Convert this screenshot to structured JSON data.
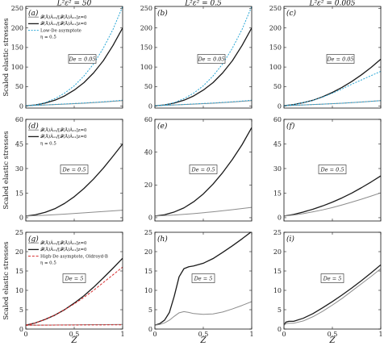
{
  "figure": {
    "column_titles": [
      "L²ε² = 50",
      "L²ε² = 0.5",
      "L²ε² = 0.005"
    ],
    "row_ylabels": [
      "Scaled elastic stresses",
      "Scaled elastic stresses",
      "Scaled elastic stresses"
    ],
    "xlabel": "Z",
    "legends": {
      "row0": [
        "𝓕(Ā)Â₁₂/[𝓕(Ā)Â₁₂]z=0",
        "𝓕(Ā)Â₁₁/[𝓕(Ā)Â₁₁]z=0",
        "Low-De asymptote",
        "η = 0.5"
      ],
      "row1": [
        "𝓕(Ā)Â₁₂/[𝓕(Ā)Â₁₂]z=0",
        "𝓕(Ā)Â₁₁/[𝓕(Ā)Â₁₁]z=0",
        "η = 0.5"
      ],
      "row2": [
        "𝓕(Ā)Â₁₂/[𝓕(Ā)Â₁₂]z=0",
        "𝓕(Ā)Â₁₁/[𝓕(Ā)Â₁₁]z=0",
        "High-De asymptote, Oldroyd-B",
        "η = 0.5"
      ]
    },
    "colors": {
      "a11": "#1a1a1a",
      "a12": "#8c8c8c",
      "low_de": "#2aa7d6",
      "high_de": "#d62728"
    }
  },
  "chart_data": [
    {
      "panel": "(a)",
      "type": "line",
      "de_label": "De = 0.05",
      "xlim": [
        0,
        1
      ],
      "ylim": [
        -5,
        255
      ],
      "yticks": [
        0,
        50,
        100,
        150,
        200,
        250
      ],
      "xticks": [
        0,
        0.5,
        1
      ],
      "xtick_labels": [
        "",
        "",
        ""
      ],
      "series": [
        {
          "role": "a11",
          "x": [
            0,
            0.1,
            0.2,
            0.3,
            0.4,
            0.5,
            0.6,
            0.7,
            0.8,
            0.9,
            1
          ],
          "y": [
            1,
            3,
            8,
            15,
            26,
            41,
            60,
            85,
            116,
            155,
            200
          ]
        },
        {
          "role": "a12",
          "x": [
            0,
            0.2,
            0.4,
            0.6,
            0.8,
            1
          ],
          "y": [
            1,
            3,
            5,
            7.5,
            10.5,
            14
          ]
        },
        {
          "role": "low_de",
          "x": [
            0,
            0.1,
            0.2,
            0.3,
            0.4,
            0.5,
            0.6,
            0.7,
            0.8,
            0.9,
            1
          ],
          "y": [
            1,
            3,
            9,
            19,
            33,
            52,
            77,
            108,
            148,
            196,
            255
          ]
        },
        {
          "role": "low_de",
          "x": [
            0,
            0.2,
            0.4,
            0.6,
            0.8,
            1
          ],
          "y": [
            1,
            3,
            5.5,
            8,
            11,
            15
          ]
        }
      ]
    },
    {
      "panel": "(b)",
      "type": "line",
      "de_label": "De = 0.05",
      "xlim": [
        0,
        1
      ],
      "ylim": [
        -5,
        255
      ],
      "yticks": [
        0,
        50,
        100,
        150,
        200,
        250
      ],
      "xticks": [
        0,
        0.5,
        1
      ],
      "xtick_labels": [
        "",
        "",
        ""
      ],
      "series": [
        {
          "role": "a11",
          "x": [
            0,
            0.1,
            0.2,
            0.3,
            0.4,
            0.5,
            0.6,
            0.7,
            0.8,
            0.9,
            1
          ],
          "y": [
            1,
            3,
            8,
            15,
            26,
            41,
            60,
            85,
            116,
            155,
            200
          ]
        },
        {
          "role": "a12",
          "x": [
            0,
            0.2,
            0.4,
            0.6,
            0.8,
            1
          ],
          "y": [
            1,
            3,
            5,
            7.5,
            10.5,
            14
          ]
        },
        {
          "role": "low_de",
          "x": [
            0,
            0.1,
            0.2,
            0.3,
            0.4,
            0.5,
            0.6,
            0.7,
            0.8,
            0.9,
            1
          ],
          "y": [
            1,
            3,
            9,
            19,
            33,
            52,
            77,
            108,
            148,
            196,
            255
          ]
        },
        {
          "role": "low_de",
          "x": [
            0,
            0.2,
            0.4,
            0.6,
            0.8,
            1
          ],
          "y": [
            1,
            3,
            5.5,
            8,
            11,
            15
          ]
        }
      ]
    },
    {
      "panel": "(c)",
      "type": "line",
      "de_label": "De = 0.05",
      "xlim": [
        0,
        1
      ],
      "ylim": [
        -5,
        255
      ],
      "yticks": [
        0,
        50,
        100,
        150,
        200,
        250
      ],
      "xticks": [
        0,
        0.5,
        1
      ],
      "xtick_labels": [
        "",
        "",
        ""
      ],
      "series": [
        {
          "role": "a11",
          "x": [
            0,
            0.1,
            0.2,
            0.3,
            0.4,
            0.5,
            0.6,
            0.7,
            0.8,
            0.9,
            1
          ],
          "y": [
            1,
            4,
            9,
            15,
            24,
            35,
            48,
            63,
            80,
            99,
            120
          ]
        },
        {
          "role": "a12",
          "x": [
            0,
            0.2,
            0.4,
            0.6,
            0.8,
            1
          ],
          "y": [
            1,
            3,
            5,
            7.5,
            10.5,
            14
          ]
        },
        {
          "role": "low_de",
          "x": [
            0,
            0.1,
            0.2,
            0.3,
            0.4,
            0.5,
            0.6,
            0.7,
            0.8,
            0.9,
            1
          ],
          "y": [
            1,
            4,
            9,
            15,
            23,
            33,
            44,
            56,
            67,
            78,
            89
          ]
        },
        {
          "role": "low_de",
          "x": [
            0,
            0.2,
            0.4,
            0.6,
            0.8,
            1
          ],
          "y": [
            1,
            3,
            5,
            7.5,
            10.5,
            14
          ]
        }
      ]
    },
    {
      "panel": "(d)",
      "type": "line",
      "de_label": "De = 0.5",
      "xlim": [
        0,
        1
      ],
      "ylim": [
        -2,
        60
      ],
      "yticks": [
        0,
        15,
        30,
        45,
        60
      ],
      "xticks": [
        0,
        0.5,
        1
      ],
      "xtick_labels": [
        "",
        "",
        ""
      ],
      "series": [
        {
          "role": "a11",
          "x": [
            0,
            0.1,
            0.2,
            0.3,
            0.4,
            0.5,
            0.6,
            0.7,
            0.8,
            0.9,
            1
          ],
          "y": [
            1,
            1.8,
            3.3,
            5.5,
            8.7,
            12.8,
            17.8,
            23.6,
            30.2,
            37.5,
            45
          ]
        },
        {
          "role": "a12",
          "x": [
            0,
            0.2,
            0.4,
            0.6,
            0.8,
            1
          ],
          "y": [
            1,
            1.5,
            2.2,
            3,
            3.8,
            4.6
          ]
        }
      ]
    },
    {
      "panel": "(e)",
      "type": "line",
      "de_label": "De = 0.5",
      "xlim": [
        0,
        1
      ],
      "ylim": [
        -2,
        60
      ],
      "yticks": [
        0,
        20,
        40,
        60
      ],
      "xticks": [
        0,
        0.5,
        1
      ],
      "xtick_labels": [
        "",
        "",
        ""
      ],
      "series": [
        {
          "role": "a11",
          "x": [
            0,
            0.1,
            0.2,
            0.3,
            0.4,
            0.5,
            0.6,
            0.7,
            0.8,
            0.9,
            1
          ],
          "y": [
            1,
            1.8,
            3.5,
            6,
            9.7,
            14.5,
            20.5,
            27.5,
            35.5,
            44.5,
            55
          ]
        },
        {
          "role": "a12",
          "x": [
            0,
            0.2,
            0.4,
            0.6,
            0.8,
            1
          ],
          "y": [
            1,
            1.6,
            2.5,
            3.6,
            4.9,
            6.3
          ]
        }
      ]
    },
    {
      "panel": "(f)",
      "type": "line",
      "de_label": "De = 0.5",
      "xlim": [
        0,
        1
      ],
      "ylim": [
        -2,
        60
      ],
      "yticks": [
        0,
        15,
        30,
        45,
        60
      ],
      "xticks": [
        0,
        0.5,
        1
      ],
      "xtick_labels": [
        "",
        "",
        ""
      ],
      "series": [
        {
          "role": "a11",
          "x": [
            0,
            0.1,
            0.2,
            0.3,
            0.4,
            0.5,
            0.6,
            0.7,
            0.8,
            0.9,
            1
          ],
          "y": [
            1,
            2,
            3.5,
            5.2,
            7.2,
            9.5,
            12.1,
            15,
            18.3,
            21.8,
            25.5
          ]
        },
        {
          "role": "a12",
          "x": [
            0,
            0.1,
            0.2,
            0.3,
            0.4,
            0.5,
            0.6,
            0.7,
            0.8,
            0.9,
            1
          ],
          "y": [
            1,
            1.6,
            2.5,
            3.6,
            4.8,
            6.2,
            7.8,
            9.5,
            11.3,
            13.2,
            15.2
          ]
        }
      ]
    },
    {
      "panel": "(g)",
      "type": "line",
      "de_label": "De = 5",
      "xlim": [
        0,
        1
      ],
      "ylim": [
        0,
        25
      ],
      "yticks": [
        0,
        5,
        10,
        15,
        20,
        25
      ],
      "xticks": [
        0,
        0.5,
        1
      ],
      "xtick_labels": [
        "0",
        "0.5",
        "1"
      ],
      "series": [
        {
          "role": "a11",
          "x": [
            0,
            0.1,
            0.2,
            0.3,
            0.4,
            0.5,
            0.6,
            0.7,
            0.8,
            0.9,
            1
          ],
          "y": [
            1,
            1.6,
            2.5,
            3.6,
            5,
            6.7,
            8.6,
            10.8,
            13.2,
            15.7,
            18.3
          ]
        },
        {
          "role": "a12",
          "x": [
            0,
            0.5,
            1
          ],
          "y": [
            1,
            1.1,
            1.2
          ]
        },
        {
          "role": "high_de",
          "x": [
            0,
            0.1,
            0.2,
            0.3,
            0.4,
            0.5,
            0.6,
            0.7,
            0.8,
            0.9,
            1
          ],
          "y": [
            1,
            1.6,
            2.5,
            3.6,
            5,
            6.5,
            8.2,
            10,
            12,
            14,
            16
          ]
        },
        {
          "role": "high_de",
          "x": [
            0,
            0.5,
            1
          ],
          "y": [
            1,
            1.05,
            1.1
          ]
        }
      ]
    },
    {
      "panel": "(h)",
      "type": "line",
      "de_label": "De = 5",
      "xlim": [
        0,
        1
      ],
      "ylim": [
        0,
        25
      ],
      "yticks": [
        0,
        5,
        10,
        15,
        20,
        25
      ],
      "xticks": [
        0,
        0.5,
        1
      ],
      "xtick_labels": [
        "0",
        "0.5",
        "1"
      ],
      "series": [
        {
          "role": "a11",
          "x": [
            0,
            0.05,
            0.1,
            0.15,
            0.2,
            0.25,
            0.3,
            0.35,
            0.4,
            0.5,
            0.6,
            0.7,
            0.8,
            0.9,
            1
          ],
          "y": [
            1,
            1.4,
            2.3,
            4.3,
            8.5,
            13.5,
            15.6,
            16.1,
            16.3,
            17,
            18.2,
            19.8,
            21.5,
            23.3,
            25.2
          ]
        },
        {
          "role": "a12",
          "x": [
            0,
            0.05,
            0.1,
            0.15,
            0.2,
            0.25,
            0.3,
            0.35,
            0.4,
            0.5,
            0.6,
            0.7,
            0.8,
            0.9,
            1
          ],
          "y": [
            1,
            1.2,
            1.6,
            2.3,
            3.3,
            4.2,
            4.5,
            4.3,
            4,
            3.8,
            3.9,
            4.4,
            5.2,
            6.1,
            7.1
          ]
        }
      ]
    },
    {
      "panel": "(i)",
      "type": "line",
      "de_label": "De = 5",
      "xlim": [
        0,
        1
      ],
      "ylim": [
        0,
        25
      ],
      "yticks": [
        0,
        5,
        10,
        15,
        20,
        25
      ],
      "xticks": [
        0,
        0.5,
        1
      ],
      "xtick_labels": [
        "0",
        "0.5",
        "1"
      ],
      "series": [
        {
          "role": "a11",
          "x": [
            0,
            0.02,
            0.05,
            0.1,
            0.2,
            0.3,
            0.4,
            0.5,
            0.6,
            0.7,
            0.8,
            0.9,
            1
          ],
          "y": [
            1,
            1.8,
            2,
            2,
            2.8,
            4,
            5.5,
            7.1,
            8.8,
            10.6,
            12.5,
            14.5,
            16.6
          ]
        },
        {
          "role": "a12",
          "x": [
            0,
            0.02,
            0.05,
            0.1,
            0.2,
            0.3,
            0.4,
            0.5,
            0.6,
            0.7,
            0.8,
            0.9,
            1
          ],
          "y": [
            1,
            1.4,
            1.5,
            1.5,
            2.1,
            3.2,
            4.6,
            6.2,
            7.9,
            9.8,
            11.7,
            13.6,
            15.6
          ]
        }
      ]
    }
  ]
}
